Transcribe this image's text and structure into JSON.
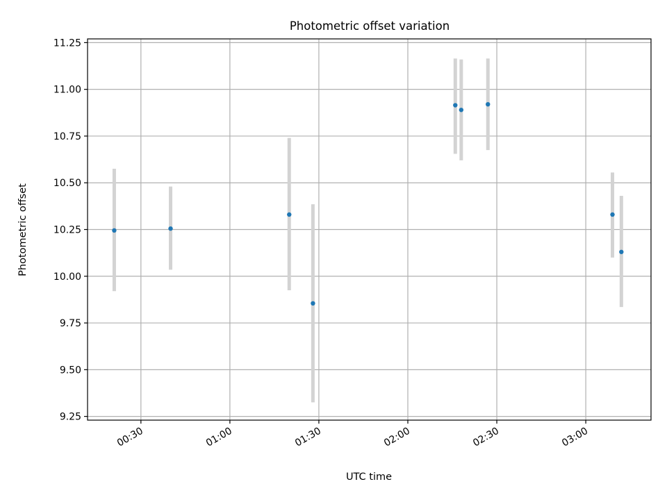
{
  "chart_data": {
    "type": "scatter",
    "title": "Photometric offset variation",
    "xlabel": "UTC time",
    "ylabel": "Photometric offset",
    "ylim": [
      9.23,
      11.27
    ],
    "xlim": [
      "00:12",
      "03:22"
    ],
    "grid": true,
    "yticks": [
      "9.25",
      "9.50",
      "9.75",
      "10.00",
      "10.25",
      "10.50",
      "10.75",
      "11.00",
      "11.25"
    ],
    "xticks": [
      "00:30",
      "01:00",
      "01:30",
      "02:00",
      "02:30",
      "03:00"
    ],
    "point_color": "#1f77b4",
    "errorbar_color": "#d3d3d3",
    "points": [
      {
        "x": "00:21",
        "y": 10.245,
        "ymin": 9.92,
        "ymax": 10.575
      },
      {
        "x": "00:40",
        "y": 10.255,
        "ymin": 10.035,
        "ymax": 10.48
      },
      {
        "x": "01:20",
        "y": 10.33,
        "ymin": 9.925,
        "ymax": 10.74
      },
      {
        "x": "01:28",
        "y": 9.855,
        "ymin": 9.325,
        "ymax": 10.385
      },
      {
        "x": "02:16",
        "y": 10.915,
        "ymin": 10.655,
        "ymax": 11.165
      },
      {
        "x": "02:18",
        "y": 10.89,
        "ymin": 10.62,
        "ymax": 11.16
      },
      {
        "x": "02:27",
        "y": 10.92,
        "ymin": 10.675,
        "ymax": 11.165
      },
      {
        "x": "03:09",
        "y": 10.33,
        "ymin": 10.1,
        "ymax": 10.555
      },
      {
        "x": "03:12",
        "y": 10.13,
        "ymin": 9.835,
        "ymax": 10.43
      }
    ]
  }
}
